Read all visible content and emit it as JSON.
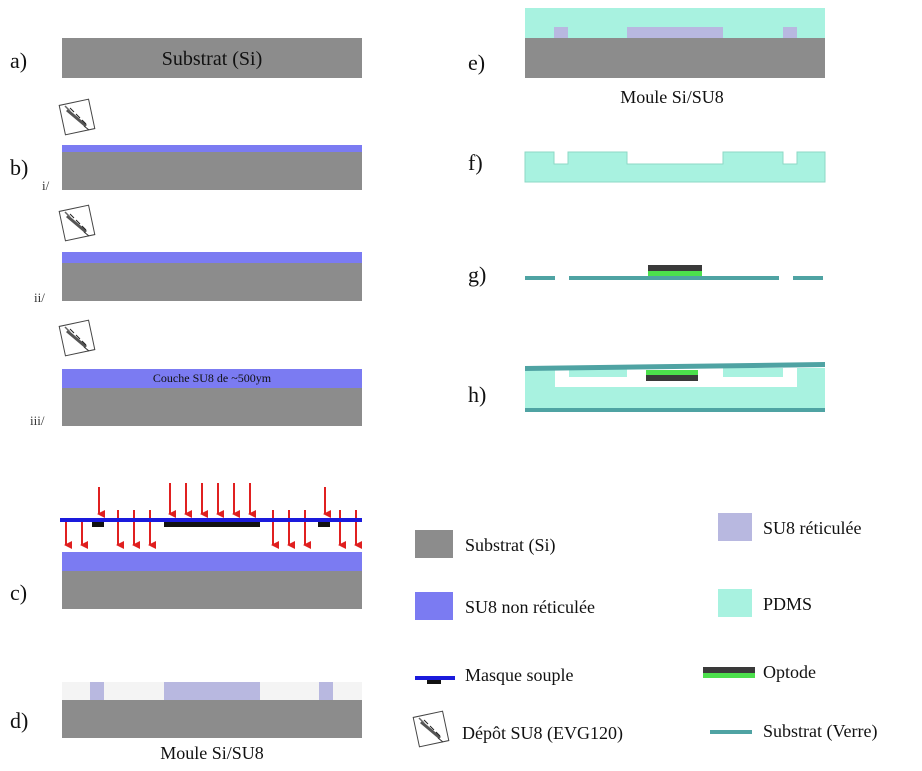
{
  "steps": {
    "a": {
      "label": "a)",
      "layer_text": "Substrat (Si)"
    },
    "b": {
      "label": "b)",
      "i": "i/",
      "ii": "ii/",
      "iii": "iii/",
      "layer_text": "Couche SU8 de ~500ym"
    },
    "c": {
      "label": "c)"
    },
    "d": {
      "label": "d)",
      "caption": "Moule Si/SU8"
    },
    "e": {
      "label": "e)",
      "caption": "Moule Si/SU8"
    },
    "f": {
      "label": "f)"
    },
    "g": {
      "label": "g)"
    },
    "h": {
      "label": "h)"
    }
  },
  "legend": {
    "substrat_si": "Substrat (Si)",
    "su8_reticulee": "SU8 réticulée",
    "su8_non_reticulee": "SU8 non réticulée",
    "pdms": "PDMS",
    "masque_souple": "Masque souple",
    "optode": "Optode",
    "depot_su8": "Dépôt SU8 (EVG120)",
    "substrat_verre": "Substrat (Verre)"
  },
  "colors": {
    "silicon": "#8c8c8c",
    "su8_uncured": "#7b7bf2",
    "su8_cured": "#b8b8e0",
    "pdms": "#a8f2e0",
    "glass": "#4fa3a3",
    "mask": "#1a1adc",
    "optode_dark": "#3a3a3a",
    "optode_green": "#4ce04c",
    "arrow": "#e02020"
  }
}
